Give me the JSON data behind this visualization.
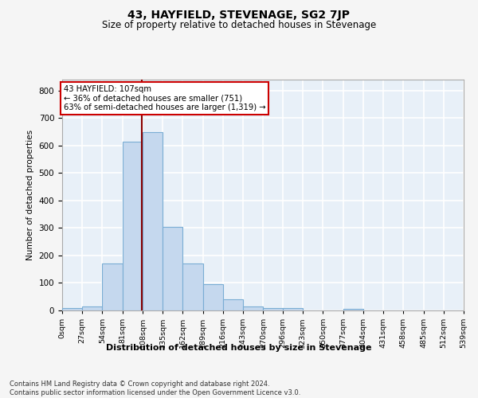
{
  "title": "43, HAYFIELD, STEVENAGE, SG2 7JP",
  "subtitle": "Size of property relative to detached houses in Stevenage",
  "xlabel": "Distribution of detached houses by size in Stevenage",
  "ylabel": "Number of detached properties",
  "bar_color": "#c5d8ee",
  "bar_edge_color": "#7aadd4",
  "background_color": "#e8f0f8",
  "grid_color": "#ffffff",
  "annotation_box_color": "#cc0000",
  "annotation_text": "43 HAYFIELD: 107sqm\n← 36% of detached houses are smaller (751)\n63% of semi-detached houses are larger (1,319) →",
  "vline_color": "#880000",
  "bins": [
    0,
    27,
    54,
    81,
    108,
    135,
    162,
    189,
    216,
    243,
    270,
    296,
    323,
    350,
    377,
    404,
    431,
    458,
    485,
    512,
    539
  ],
  "bin_labels": [
    "0sqm",
    "27sqm",
    "54sqm",
    "81sqm",
    "108sqm",
    "135sqm",
    "162sqm",
    "189sqm",
    "216sqm",
    "243sqm",
    "270sqm",
    "296sqm",
    "323sqm",
    "350sqm",
    "377sqm",
    "404sqm",
    "431sqm",
    "458sqm",
    "485sqm",
    "512sqm",
    "539sqm"
  ],
  "values": [
    8,
    15,
    170,
    615,
    650,
    305,
    170,
    97,
    42,
    15,
    8,
    8,
    0,
    0,
    5,
    0,
    0,
    0,
    0,
    0
  ],
  "ylim": [
    0,
    840
  ],
  "yticks": [
    0,
    100,
    200,
    300,
    400,
    500,
    600,
    700,
    800
  ],
  "footnote": "Contains HM Land Registry data © Crown copyright and database right 2024.\nContains public sector information licensed under the Open Government Licence v3.0.",
  "fig_bg": "#f5f5f5"
}
